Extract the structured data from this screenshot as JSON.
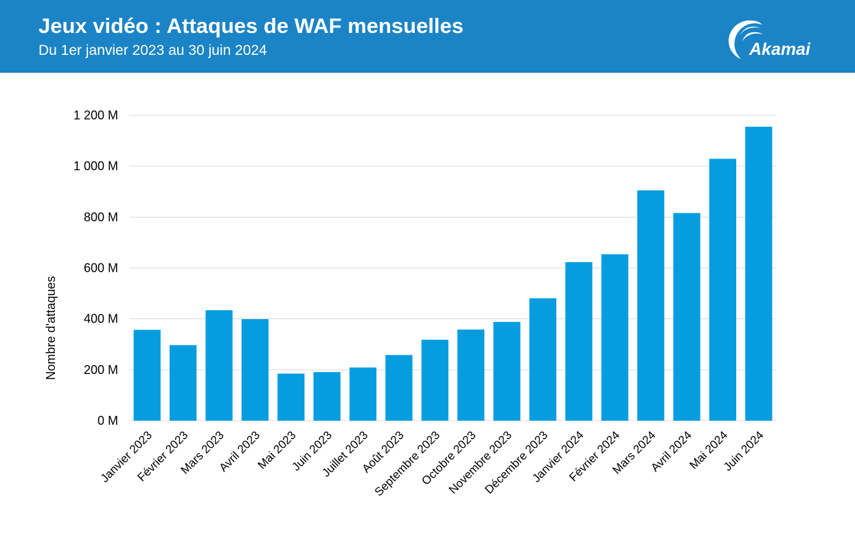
{
  "header": {
    "title": "Jeux vidéo : Attaques de WAF mensuelles",
    "subtitle": "Du 1er janvier 2023 au 30 juin 2024",
    "brand": "Akamai"
  },
  "colors": {
    "header_bg": "#1a84c6",
    "bar": "#069de0",
    "grid": "#d9d9d9",
    "text": "#000000"
  },
  "chart_data": {
    "type": "bar",
    "ylabel": "Nombre d'attaques",
    "ylim": [
      0,
      1200
    ],
    "yticks": [
      0,
      200,
      400,
      600,
      800,
      1000,
      1200
    ],
    "ytick_labels": [
      "0 M",
      "200 M",
      "400 M",
      "600 M",
      "800 M",
      "1 000 M",
      "1 200 M"
    ],
    "grid": true,
    "categories": [
      "Janvier 2023",
      "Février 2023",
      "Mars 2023",
      "Avril 2023",
      "Mai 2023",
      "Juin 2023",
      "Juillet 2023",
      "Août 2023",
      "Septembre 2023",
      "Octobre 2023",
      "Novembre 2023",
      "Décembre 2023",
      "Janvier 2024",
      "Février 2024",
      "Mars 2024",
      "Avril 2024",
      "Mai 2024",
      "Juin 2024"
    ],
    "values": [
      357,
      297,
      434,
      399,
      185,
      191,
      209,
      258,
      318,
      358,
      388,
      481,
      623,
      654,
      905,
      816,
      1029,
      1155
    ]
  }
}
